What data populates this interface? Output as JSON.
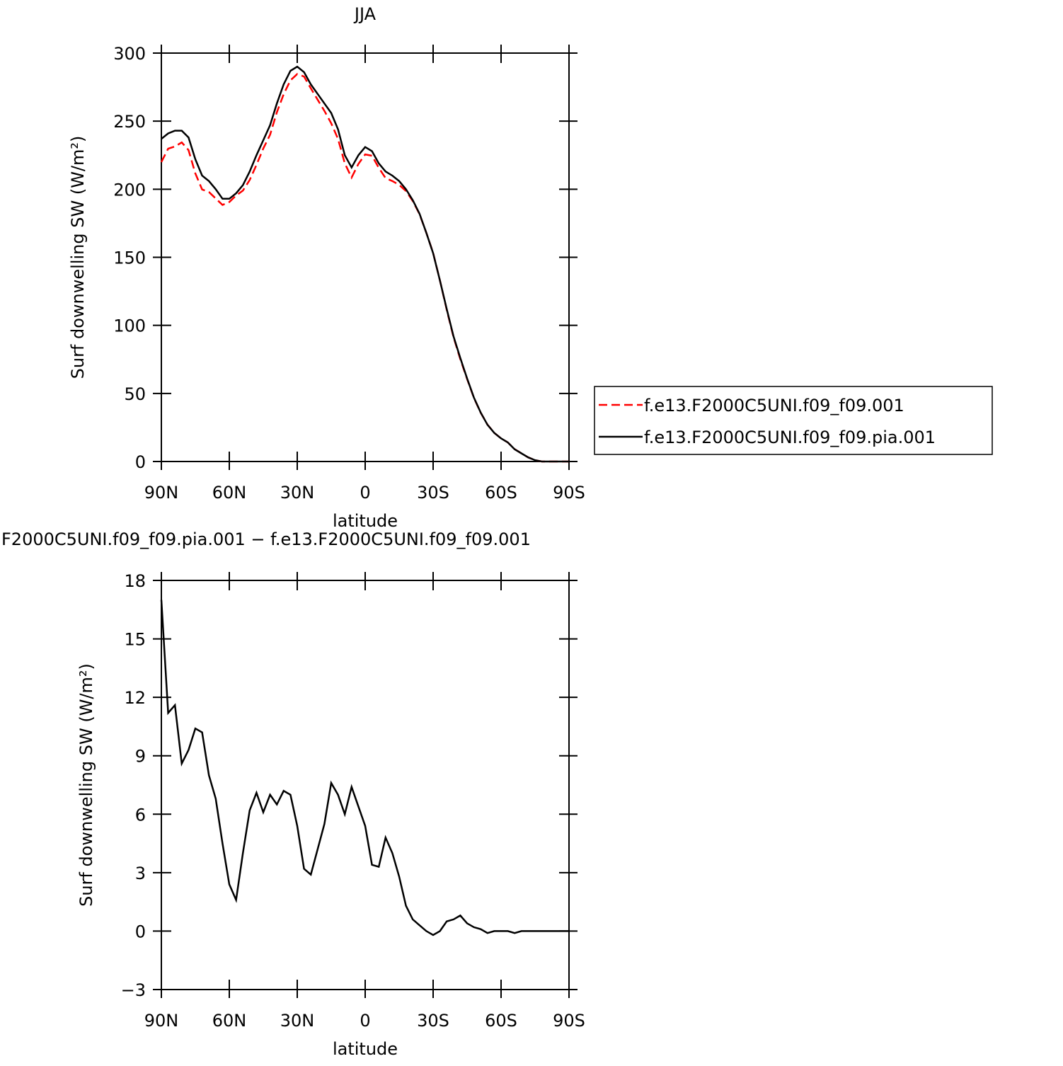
{
  "chart_data": [
    {
      "type": "line",
      "title": "JJA",
      "xlabel": "latitude",
      "ylabel": "Surf downwelling SW (W/m²)",
      "x": [
        90,
        87,
        84,
        81,
        78,
        75,
        72,
        69,
        66,
        63,
        60,
        57,
        54,
        51,
        48,
        45,
        42,
        39,
        36,
        33,
        30,
        27,
        24,
        21,
        18,
        15,
        12,
        9,
        6,
        3,
        0,
        -3,
        -6,
        -9,
        -12,
        -15,
        -18,
        -21,
        -24,
        -27,
        -30,
        -33,
        -36,
        -39,
        -42,
        -45,
        -48,
        -51,
        -54,
        -57,
        -60,
        -63,
        -66,
        -69,
        -72,
        -75,
        -78,
        -81,
        -84,
        -87,
        -90
      ],
      "xlim": [
        90,
        -90
      ],
      "xticks": [
        {
          "value": 90,
          "label": "90N"
        },
        {
          "value": 60,
          "label": "60N"
        },
        {
          "value": 30,
          "label": "30N"
        },
        0,
        {
          "value": -30,
          "label": "30S"
        },
        {
          "value": -60,
          "label": "60S"
        },
        {
          "value": -90,
          "label": "90S"
        }
      ],
      "ylim": [
        0,
        300
      ],
      "yticks": [
        0,
        50,
        100,
        150,
        200,
        250,
        300
      ],
      "legend": "right",
      "series": [
        {
          "name": "f.e13.F2000C5UNI.f09_f09.001",
          "color": "#ff0000",
          "dashed": true,
          "values": [
            220,
            229.8,
            231.4,
            234.4,
            228.7,
            211.6,
            199.8,
            198,
            193.2,
            188.5,
            190.6,
            195.4,
            199,
            206.8,
            217.9,
            229.9,
            240,
            256.5,
            269.8,
            280,
            284.6,
            282.8,
            274.1,
            265.8,
            257.5,
            248.4,
            237,
            219,
            208.6,
            218.6,
            225.6,
            224.6,
            215.7,
            208.2,
            206,
            203.2,
            198.7,
            191.4,
            181.7,
            168,
            153.2,
            133,
            111.5,
            91.4,
            75.2,
            60.6,
            46.8,
            35.9,
            27.1,
            21,
            17,
            14,
            9.1,
            6,
            3,
            1,
            0,
            0,
            0,
            0,
            0
          ]
        },
        {
          "name": "f.e13.F2000C5UNI.f09_f09.pia.001",
          "color": "#000000",
          "dashed": false,
          "values": [
            237,
            241,
            243,
            243,
            238,
            222,
            210,
            206,
            200,
            193,
            193,
            197,
            203,
            213,
            225,
            236,
            247,
            263,
            277,
            287,
            290,
            286,
            277,
            270,
            263,
            256,
            244,
            225,
            216,
            225,
            231,
            228,
            219,
            213,
            210,
            206,
            200,
            192,
            182,
            168,
            153,
            133,
            112,
            92,
            76,
            61,
            47,
            36,
            27,
            21,
            17,
            14,
            9,
            6,
            3,
            1,
            0,
            0,
            0,
            0,
            0
          ]
        }
      ]
    },
    {
      "type": "line",
      "title": "F2000C5UNI.f09_f09.pia.001 − f.e13.F2000C5UNI.f09_f09.001",
      "xlabel": "latitude",
      "ylabel": "Surf downwelling SW (W/m²)",
      "x": [
        90,
        87,
        84,
        81,
        78,
        75,
        72,
        69,
        66,
        63,
        60,
        57,
        54,
        51,
        48,
        45,
        42,
        39,
        36,
        33,
        30,
        27,
        24,
        21,
        18,
        15,
        12,
        9,
        6,
        3,
        0,
        -3,
        -6,
        -9,
        -12,
        -15,
        -18,
        -21,
        -24,
        -27,
        -30,
        -33,
        -36,
        -39,
        -42,
        -45,
        -48,
        -51,
        -54,
        -57,
        -60,
        -63,
        -66,
        -69,
        -72,
        -75,
        -78,
        -81,
        -84,
        -87,
        -90
      ],
      "xlim": [
        90,
        -90
      ],
      "xticks": [
        {
          "value": 90,
          "label": "90N"
        },
        {
          "value": 60,
          "label": "60N"
        },
        {
          "value": 30,
          "label": "30N"
        },
        0,
        {
          "value": -30,
          "label": "30S"
        },
        {
          "value": -60,
          "label": "60S"
        },
        {
          "value": -90,
          "label": "90S"
        }
      ],
      "ylim": [
        -3,
        18
      ],
      "yticks": [
        {
          "value": -3,
          "label": "−3"
        },
        0,
        3,
        6,
        9,
        12,
        15,
        18
      ],
      "series": [
        {
          "color": "#000000",
          "dashed": false,
          "values": [
            17,
            11.2,
            11.6,
            8.6,
            9.3,
            10.4,
            10.2,
            8,
            6.8,
            4.5,
            2.4,
            1.6,
            4,
            6.2,
            7.1,
            6.1,
            7,
            6.5,
            7.2,
            7,
            5.4,
            3.2,
            2.9,
            4.2,
            5.5,
            7.6,
            7,
            6,
            7.4,
            6.4,
            5.4,
            3.4,
            3.3,
            4.8,
            4,
            2.8,
            1.3,
            0.6,
            0.3,
            0,
            -0.2,
            0,
            0.5,
            0.6,
            0.8,
            0.4,
            0.2,
            0.1,
            -0.1,
            0,
            0,
            0,
            -0.1,
            0,
            0,
            0,
            0,
            0,
            0,
            0,
            0
          ]
        }
      ]
    }
  ]
}
